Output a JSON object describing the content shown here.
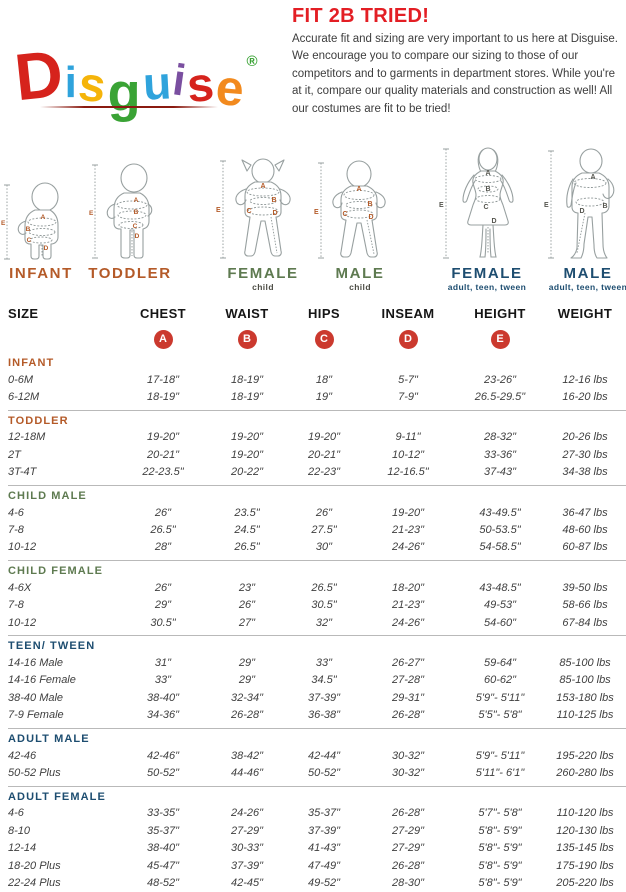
{
  "logo": {
    "letters": [
      {
        "ch": "D",
        "color": "#d6231c"
      },
      {
        "ch": "i",
        "color": "#2fa3dc"
      },
      {
        "ch": "s",
        "color": "#f5b40a"
      },
      {
        "ch": "g",
        "color": "#3aa335"
      },
      {
        "ch": "u",
        "color": "#2fa3dc"
      },
      {
        "ch": "i",
        "color": "#7a4fa0"
      },
      {
        "ch": "s",
        "color": "#d6231c"
      },
      {
        "ch": "e",
        "color": "#f28a1e"
      }
    ],
    "registered": "®",
    "registered_color": "#3aa335"
  },
  "intro": {
    "title": "FIT 2B TRIED!",
    "title_color": "#e31e24",
    "body": "Accurate fit and sizing are very important to us here at Disguise. We encourage you to compare our sizing to those of our competitors and to garments in department stores. While you're at it, compare our quality materials and construction as well! All our costumes are fit to be tried!"
  },
  "measure_letters": [
    "A",
    "B",
    "C",
    "D",
    "E"
  ],
  "figures": [
    {
      "label": "INFANT",
      "sublabel": "",
      "label_color": "#b45a28",
      "letter_color": "#b45a28",
      "sublabel_color": "#b45a28"
    },
    {
      "label": "TODDLER",
      "sublabel": "",
      "label_color": "#b45a28",
      "letter_color": "#b45a28",
      "sublabel_color": "#b45a28"
    },
    {
      "label": "FEMALE",
      "sublabel": "child",
      "label_color": "#5e7a50",
      "letter_color": "#b45a28",
      "sublabel_color": "#4d4d45"
    },
    {
      "label": "MALE",
      "sublabel": "child",
      "label_color": "#5e7a50",
      "letter_color": "#b45a28",
      "sublabel_color": "#4d4d45"
    },
    {
      "label": "FEMALE",
      "sublabel": "adult, teen, tween",
      "label_color": "#1d4d70",
      "letter_color": "#55554e",
      "sublabel_color": "#1d4d70"
    },
    {
      "label": "MALE",
      "sublabel": "adult, teen, tween",
      "label_color": "#1d4d70",
      "letter_color": "#55554e",
      "sublabel_color": "#1d4d70"
    }
  ],
  "table": {
    "columns": [
      "SIZE",
      "CHEST",
      "WAIST",
      "HIPS",
      "INSEAM",
      "HEIGHT",
      "WEIGHT"
    ],
    "badge_color": "#cb392e",
    "sections": [
      {
        "name": "INFANT",
        "color": "#b45a28",
        "rows": [
          [
            "0-6M",
            "17-18\"",
            "18-19\"",
            "18\"",
            "5-7\"",
            "23-26\"",
            "12-16 lbs"
          ],
          [
            "6-12M",
            "18-19\"",
            "18-19\"",
            "19\"",
            "7-9\"",
            "26.5-29.5\"",
            "16-20 lbs"
          ]
        ]
      },
      {
        "name": "TODDLER",
        "color": "#b45a28",
        "rows": [
          [
            "12-18M",
            "19-20\"",
            "19-20\"",
            "19-20\"",
            "9-11\"",
            "28-32\"",
            "20-26 lbs"
          ],
          [
            "2T",
            "20-21\"",
            "19-20\"",
            "20-21\"",
            "10-12\"",
            "33-36\"",
            "27-30 lbs"
          ],
          [
            "3T-4T",
            "22-23.5\"",
            "20-22\"",
            "22-23\"",
            "12-16.5\"",
            "37-43\"",
            "34-38 lbs"
          ]
        ]
      },
      {
        "name": "CHILD MALE",
        "color": "#5e7a50",
        "rows": [
          [
            "4-6",
            "26\"",
            "23.5\"",
            "26\"",
            "19-20\"",
            "43-49.5\"",
            "36-47 lbs"
          ],
          [
            "7-8",
            "26.5\"",
            "24.5\"",
            "27.5\"",
            "21-23\"",
            "50-53.5\"",
            "48-60 lbs"
          ],
          [
            "10-12",
            "28\"",
            "26.5\"",
            "30\"",
            "24-26\"",
            "54-58.5\"",
            "60-87 lbs"
          ]
        ]
      },
      {
        "name": "CHILD FEMALE",
        "color": "#5e7a50",
        "rows": [
          [
            "4-6X",
            "26\"",
            "23\"",
            "26.5\"",
            "18-20\"",
            "43-48.5\"",
            "39-50 lbs"
          ],
          [
            "7-8",
            "29\"",
            "26\"",
            "30.5\"",
            "21-23\"",
            "49-53\"",
            "58-66 lbs"
          ],
          [
            "10-12",
            "30.5\"",
            "27\"",
            "32\"",
            "24-26\"",
            "54-60\"",
            "67-84 lbs"
          ]
        ]
      },
      {
        "name": "TEEN/ TWEEN",
        "color": "#1d4d70",
        "rows": [
          [
            "14-16 Male",
            "31\"",
            "29\"",
            "33\"",
            "26-27\"",
            "59-64\"",
            "85-100 lbs"
          ],
          [
            "14-16 Female",
            "33\"",
            "29\"",
            "34.5\"",
            "27-28\"",
            "60-62\"",
            "85-100 lbs"
          ],
          [
            "38-40 Male",
            "38-40\"",
            "32-34\"",
            "37-39\"",
            "29-31\"",
            "5'9\"- 5'11\"",
            "153-180 lbs"
          ],
          [
            "7-9 Female",
            "34-36\"",
            "26-28\"",
            "36-38\"",
            "26-28\"",
            "5'5\"- 5'8\"",
            "110-125 lbs"
          ]
        ]
      },
      {
        "name": "ADULT MALE",
        "color": "#1d4d70",
        "rows": [
          [
            "42-46",
            "42-46\"",
            "38-42\"",
            "42-44\"",
            "30-32\"",
            "5'9\"- 5'11\"",
            "195-220 lbs"
          ],
          [
            "50-52 Plus",
            "50-52\"",
            "44-46\"",
            "50-52\"",
            "30-32\"",
            "5'11\"- 6'1\"",
            "260-280 lbs"
          ]
        ]
      },
      {
        "name": "ADULT FEMALE",
        "color": "#1d4d70",
        "rows": [
          [
            "4-6",
            "33-35\"",
            "24-26\"",
            "35-37\"",
            "26-28\"",
            "5'7\"- 5'8\"",
            "110-120 lbs"
          ],
          [
            "8-10",
            "35-37\"",
            "27-29\"",
            "37-39\"",
            "27-29\"",
            "5'8\"- 5'9\"",
            "120-130 lbs"
          ],
          [
            "12-14",
            "38-40\"",
            "30-33\"",
            "41-43\"",
            "27-29\"",
            "5'8\"- 5'9\"",
            "135-145 lbs"
          ],
          [
            "18-20 Plus",
            "45-47\"",
            "37-39\"",
            "47-49\"",
            "26-28\"",
            "5'8\"- 5'9\"",
            "175-190 lbs"
          ],
          [
            "22-24 Plus",
            "48-52\"",
            "42-45\"",
            "49-52\"",
            "28-30\"",
            "5'8\"- 5'9\"",
            "205-220 lbs"
          ]
        ]
      }
    ]
  }
}
